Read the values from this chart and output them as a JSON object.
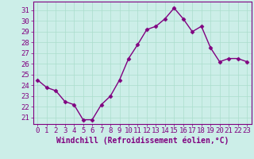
{
  "x": [
    0,
    1,
    2,
    3,
    4,
    5,
    6,
    7,
    8,
    9,
    10,
    11,
    12,
    13,
    14,
    15,
    16,
    17,
    18,
    19,
    20,
    21,
    22,
    23
  ],
  "y": [
    24.5,
    23.8,
    23.5,
    22.5,
    22.2,
    20.8,
    20.8,
    22.2,
    23.0,
    24.5,
    26.5,
    27.8,
    29.2,
    29.5,
    30.2,
    31.2,
    30.2,
    29.0,
    29.5,
    27.5,
    26.2,
    26.5,
    26.5,
    26.2
  ],
  "line_color": "#800080",
  "marker": "D",
  "marker_size": 2.5,
  "line_width": 1.0,
  "bg_color": "#cceee8",
  "grid_color": "#aaddcc",
  "xlabel": "Windchill (Refroidissement éolien,°C)",
  "xlabel_color": "#800080",
  "xlabel_fontsize": 7,
  "ylabel_ticks": [
    21,
    22,
    23,
    24,
    25,
    26,
    27,
    28,
    29,
    30,
    31
  ],
  "ylim": [
    20.4,
    31.8
  ],
  "xlim": [
    -0.5,
    23.5
  ],
  "tick_fontsize": 6.5,
  "tick_color": "#800080",
  "spine_color": "#800080"
}
